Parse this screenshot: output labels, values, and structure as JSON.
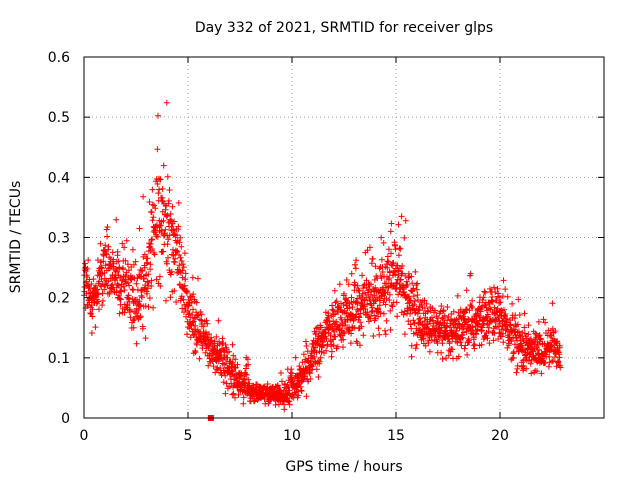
{
  "chart_data": {
    "type": "scatter",
    "title": "Day 332 of 2021, SRMTID for receiver glps",
    "xlabel": "GPS time / hours",
    "ylabel": "SRMTID / TECUs",
    "xlim": [
      0,
      25
    ],
    "ylim": [
      0,
      0.6
    ],
    "xticks": [
      0,
      5,
      10,
      15,
      20
    ],
    "yticks": [
      0,
      0.1,
      0.2,
      0.3,
      0.4,
      0.5,
      0.6
    ],
    "xtick_labels": [
      "0",
      "5",
      "10",
      "15",
      "20"
    ],
    "ytick_labels": [
      "0",
      "0.1",
      "0.2",
      "0.3",
      "0.4",
      "0.5",
      "0.6"
    ],
    "grid": true,
    "marker": "plus",
    "color": "#ff0000",
    "extra_marker": {
      "x": 6.1,
      "y": 0.0,
      "shape": "square"
    },
    "series": [
      {
        "name": "SRMTID",
        "profile": [
          [
            0.0,
            0.22
          ],
          [
            0.5,
            0.19
          ],
          [
            1.0,
            0.25
          ],
          [
            1.5,
            0.24
          ],
          [
            2.0,
            0.21
          ],
          [
            2.5,
            0.19
          ],
          [
            3.0,
            0.22
          ],
          [
            3.5,
            0.34
          ],
          [
            4.0,
            0.33
          ],
          [
            4.5,
            0.27
          ],
          [
            5.0,
            0.17
          ],
          [
            5.5,
            0.14
          ],
          [
            6.0,
            0.12
          ],
          [
            6.5,
            0.1
          ],
          [
            7.0,
            0.08
          ],
          [
            7.5,
            0.06
          ],
          [
            8.0,
            0.045
          ],
          [
            8.5,
            0.04
          ],
          [
            9.0,
            0.04
          ],
          [
            9.5,
            0.035
          ],
          [
            10.0,
            0.05
          ],
          [
            10.5,
            0.07
          ],
          [
            11.0,
            0.1
          ],
          [
            11.5,
            0.13
          ],
          [
            12.0,
            0.15
          ],
          [
            12.5,
            0.17
          ],
          [
            13.0,
            0.18
          ],
          [
            13.5,
            0.19
          ],
          [
            14.0,
            0.2
          ],
          [
            14.5,
            0.21
          ],
          [
            15.0,
            0.24
          ],
          [
            15.5,
            0.2
          ],
          [
            16.0,
            0.17
          ],
          [
            16.5,
            0.15
          ],
          [
            17.0,
            0.14
          ],
          [
            17.5,
            0.13
          ],
          [
            18.0,
            0.14
          ],
          [
            18.5,
            0.15
          ],
          [
            19.0,
            0.16
          ],
          [
            19.5,
            0.17
          ],
          [
            20.0,
            0.17
          ],
          [
            20.5,
            0.14
          ],
          [
            21.0,
            0.12
          ],
          [
            21.5,
            0.11
          ],
          [
            22.0,
            0.11
          ],
          [
            22.5,
            0.12
          ],
          [
            22.9,
            0.11
          ]
        ],
        "spread": [
          [
            0.0,
            0.05
          ],
          [
            2.0,
            0.06
          ],
          [
            3.5,
            0.1
          ],
          [
            4.2,
            0.11
          ],
          [
            5.0,
            0.05
          ],
          [
            6.5,
            0.04
          ],
          [
            8.5,
            0.015
          ],
          [
            10.0,
            0.025
          ],
          [
            12.0,
            0.05
          ],
          [
            14.5,
            0.06
          ],
          [
            15.0,
            0.07
          ],
          [
            17.0,
            0.04
          ],
          [
            19.5,
            0.05
          ],
          [
            22.9,
            0.04
          ]
        ],
        "samples_per_hour": 100,
        "x_start": 0.0,
        "x_end": 22.9
      }
    ]
  }
}
